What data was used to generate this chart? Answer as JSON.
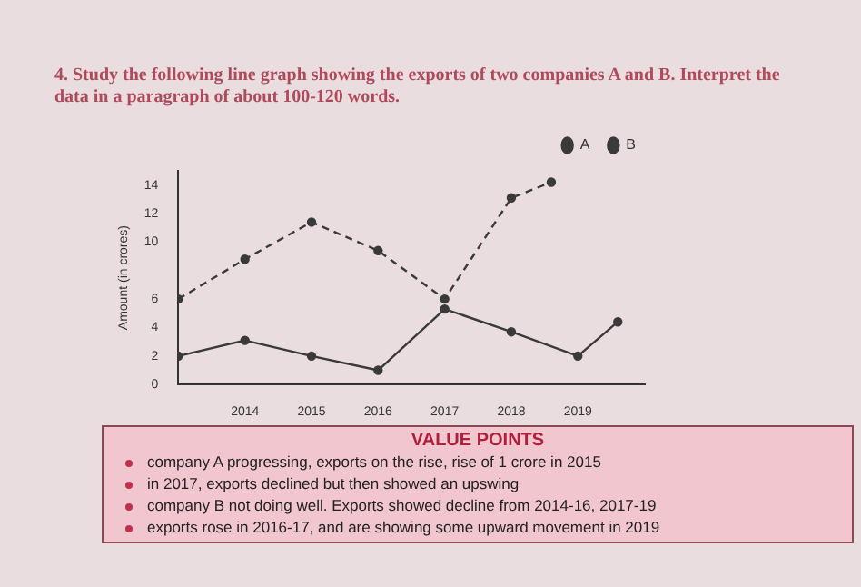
{
  "chart_data": {
    "type": "line",
    "title": "4. Study the following line graph showing the exports of two companies A and B. Interpret the data in a paragraph of about 100-120 words.",
    "ylabel": "Amount (in crores)",
    "xlim": [
      2013,
      2020
    ],
    "xticks": [
      2014,
      2015,
      2016,
      2017,
      2018,
      2019
    ],
    "ylim": [
      0,
      15
    ],
    "yticks": [
      0,
      2,
      4,
      6,
      10,
      12,
      14
    ],
    "series": [
      {
        "name": "A",
        "color": "#3a3a3a",
        "line_style": "dashed",
        "x": [
          2013,
          2014,
          2015,
          2016,
          2017,
          2018,
          2018.6
        ],
        "values": [
          6,
          8.8,
          11.4,
          9.4,
          6,
          13.1,
          14.2
        ]
      },
      {
        "name": "B",
        "color": "#3a3a3a",
        "line_style": "solid",
        "x": [
          2013,
          2014,
          2015,
          2016,
          2017,
          2018,
          2019,
          2019.6
        ],
        "values": [
          2,
          3.1,
          2,
          1,
          5.3,
          3.7,
          2,
          4.4
        ]
      }
    ],
    "marker": "circle",
    "grid": false,
    "legend": "top right",
    "annotations": [
      "VALUE POINTS",
      "company A progressing, exports on the rise, rise of 1 crore in 2015",
      "in 2017, exports declined but then showed an upswing",
      "company B not doing well. Exports showed decline from 2014-16, 2017-19",
      "exports rose in 2016-17, and are showing some upward movement in 2019"
    ]
  }
}
